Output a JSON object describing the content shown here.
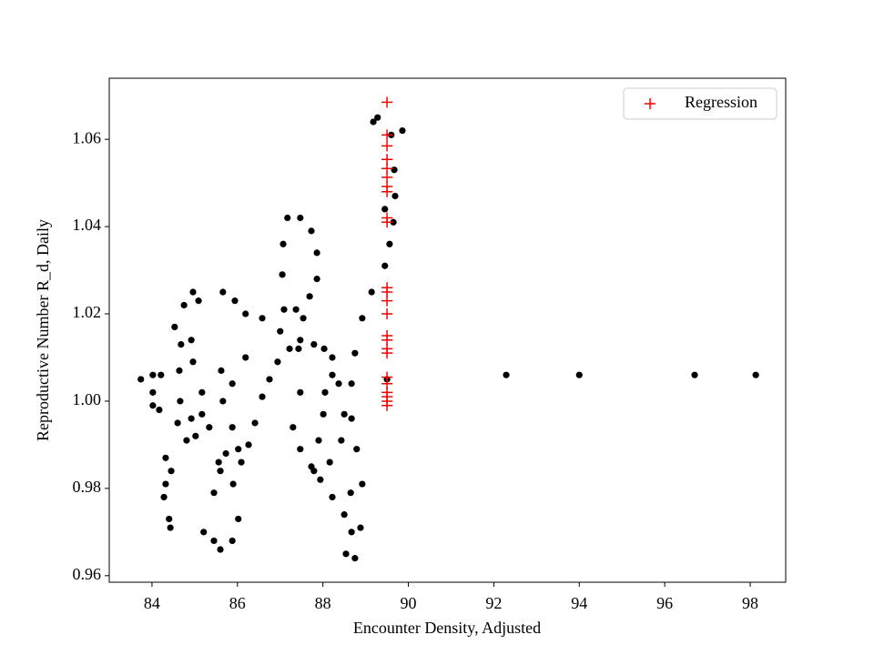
{
  "chart_data": {
    "type": "scatter",
    "xlabel": "Encounter Density, Adjusted",
    "ylabel": "Reproductive Number R_d, Daily",
    "xlim": [
      83.0,
      98.83
    ],
    "ylim": [
      0.9585,
      1.074
    ],
    "xticks": [
      84,
      86,
      88,
      90,
      92,
      94,
      96,
      98
    ],
    "yticks": [
      0.96,
      0.98,
      {
        "value": 1,
        "label": "1.00"
      },
      1.02,
      1.04,
      1.06
    ],
    "legend": "upper right",
    "series": [
      {
        "color": "#000000",
        "marker": "dot",
        "x": [
          83.74,
          84.02,
          84.21,
          84.02,
          84.02,
          84.17,
          84.32,
          84.32,
          84.28,
          84.4,
          84.43,
          84.45,
          84.6,
          84.66,
          84.64,
          84.68,
          84.53,
          84.75,
          84.96,
          85.09,
          84.92,
          84.96,
          85.17,
          85.17,
          85.02,
          84.81,
          84.92,
          85.34,
          85.56,
          85.6,
          85.45,
          85.21,
          85.45,
          85.6,
          85.88,
          86.02,
          85.9,
          86.09,
          86.26,
          86.41,
          86.58,
          86.75,
          86.94,
          87.22,
          87.47,
          87.79,
          88.03,
          88.22,
          88.22,
          88.05,
          88.01,
          87.9,
          87.73,
          87.94,
          88.22,
          88.5,
          88.67,
          88.75,
          88.54,
          88.65,
          88.79,
          88.67,
          88.67,
          88.75,
          88.92,
          89.14,
          89.45,
          89.56,
          89.65,
          89.69,
          89.67,
          89.6,
          89.86,
          89.18,
          89.28,
          89.45,
          87.09,
          87.05,
          87.07,
          87.17,
          87.47,
          87.73,
          87.86,
          87.86,
          87.69,
          87.37,
          87.0,
          87.54,
          87.43,
          87.47,
          87.3,
          87.47,
          87.79,
          88.16,
          88.43,
          88.5,
          88.37,
          85.66,
          85.94,
          86.19,
          86.58,
          86.19,
          85.88,
          85.66,
          85.88,
          86.02,
          85.73,
          85.62,
          89.5,
          88.92,
          88.88,
          92.29,
          94.0,
          96.7,
          98.13
        ],
        "values": [
          1.005,
          1.006,
          1.006,
          1.002,
          0.999,
          0.998,
          0.987,
          0.981,
          0.978,
          0.973,
          0.971,
          0.984,
          0.995,
          1.0,
          1.007,
          1.013,
          1.017,
          1.022,
          1.025,
          1.023,
          1.014,
          1.009,
          1.002,
          0.997,
          0.992,
          0.991,
          0.996,
          0.994,
          0.986,
          0.984,
          0.979,
          0.97,
          0.968,
          0.966,
          0.968,
          0.973,
          0.981,
          0.986,
          0.99,
          0.995,
          1.001,
          1.005,
          1.009,
          1.012,
          1.014,
          1.013,
          1.012,
          1.01,
          1.006,
          1.002,
          0.997,
          0.991,
          0.985,
          0.982,
          0.978,
          0.974,
          0.97,
          0.964,
          0.965,
          0.979,
          0.989,
          0.996,
          1.004,
          1.011,
          1.019,
          1.025,
          1.031,
          1.036,
          1.041,
          1.047,
          1.053,
          1.061,
          1.062,
          1.064,
          1.065,
          1.044,
          1.021,
          1.029,
          1.036,
          1.042,
          1.042,
          1.039,
          1.034,
          1.028,
          1.024,
          1.021,
          1.016,
          1.019,
          1.012,
          1.002,
          0.994,
          0.989,
          0.984,
          0.986,
          0.991,
          0.997,
          1.004,
          1.025,
          1.023,
          1.02,
          1.019,
          1.01,
          1.004,
          1.0,
          0.994,
          0.989,
          0.988,
          1.007,
          1.005,
          0.981,
          0.971,
          1.006,
          1.006,
          1.006,
          1.006
        ]
      },
      {
        "name": "Regression",
        "color": "#ff0000",
        "marker": "plus",
        "x": [
          89.5,
          89.5,
          89.5,
          89.5,
          89.5,
          89.5,
          89.5,
          89.5,
          89.5,
          89.5,
          89.5,
          89.5,
          89.5,
          89.5,
          89.5,
          89.5,
          89.5,
          89.5,
          89.5,
          89.5,
          89.5,
          89.5,
          89.5,
          89.5
        ],
        "values": [
          1.0685,
          1.061,
          1.0585,
          1.0554,
          1.0533,
          1.0513,
          1.0492,
          1.048,
          1.042,
          1.041,
          1.026,
          1.025,
          1.023,
          1.02,
          1.015,
          1.014,
          1.012,
          1.011,
          1.0055,
          1.004,
          1.002,
          1.001,
          1.0,
          0.999
        ]
      }
    ]
  }
}
